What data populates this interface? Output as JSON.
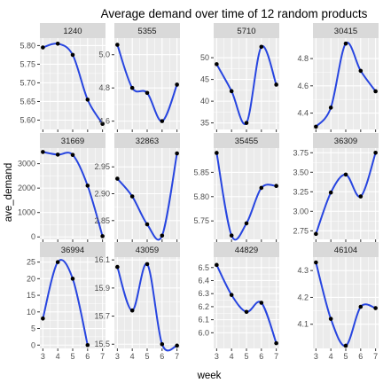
{
  "chart_data": {
    "type": "line",
    "title": "Average demand over time of 12 random products",
    "xlabel": "week",
    "ylabel": "ave_demand",
    "x_ticks": [
      3,
      4,
      5,
      6,
      7
    ],
    "grid": true,
    "facet_layout": "3 rows x 4 columns, free y scales",
    "colors": {
      "panel_background": "#ebebeb",
      "grid": "#ffffff",
      "strip_background": "#d9d9d9",
      "line": "#2745e0",
      "point": "#000000"
    },
    "panels": [
      {
        "label": "1240",
        "x": [
          3,
          4,
          5,
          6,
          7
        ],
        "y": [
          5.795,
          5.805,
          5.775,
          5.655,
          5.59
        ],
        "ylim": [
          5.575,
          5.82
        ],
        "ticks": [
          5.6,
          5.65,
          5.7,
          5.75,
          5.8
        ],
        "tick_labels": [
          "5.60",
          "5.65",
          "5.70",
          "5.75",
          "5.80"
        ]
      },
      {
        "label": "5355",
        "x": [
          3,
          4,
          5,
          6,
          7
        ],
        "y": [
          5.06,
          4.8,
          4.77,
          4.6,
          4.82
        ],
        "ylim": [
          4.55,
          5.1
        ],
        "ticks": [
          4.6,
          4.8,
          5.0
        ],
        "tick_labels": [
          "4.6",
          "4.8",
          "5.0"
        ]
      },
      {
        "label": "5710",
        "x": [
          3,
          4,
          5,
          6,
          7
        ],
        "y": [
          48.5,
          42.3,
          35.0,
          52.5,
          43.8
        ],
        "ylim": [
          33.5,
          54.5
        ],
        "ticks": [
          35,
          40,
          45,
          50
        ],
        "tick_labels": [
          "35",
          "40",
          "45",
          "50"
        ]
      },
      {
        "label": "30415",
        "x": [
          3,
          4,
          5,
          6,
          7
        ],
        "y": [
          4.3,
          4.44,
          4.91,
          4.71,
          4.56
        ],
        "ylim": [
          4.28,
          4.95
        ],
        "ticks": [
          4.4,
          4.6,
          4.8
        ],
        "tick_labels": [
          "4.4",
          "4.6",
          "4.8"
        ]
      },
      {
        "label": "31669",
        "x": [
          3,
          4,
          5,
          6,
          7
        ],
        "y": [
          3480,
          3370,
          3360,
          2100,
          30
        ],
        "ylim": [
          -100,
          3640
        ],
        "ticks": [
          0,
          1000,
          2000,
          3000
        ],
        "tick_labels": [
          "0",
          "1000",
          "2000",
          "3000"
        ]
      },
      {
        "label": "32863",
        "x": [
          3,
          4,
          5,
          6,
          7
        ],
        "y": [
          2.928,
          2.895,
          2.843,
          2.822,
          2.975
        ],
        "ylim": [
          2.815,
          2.985
        ],
        "ticks": [
          2.85,
          2.9,
          2.95
        ],
        "tick_labels": [
          "2.85",
          "2.90",
          "2.95"
        ]
      },
      {
        "label": "35455",
        "x": [
          3,
          4,
          5,
          6,
          7
        ],
        "y": [
          5.89,
          5.72,
          5.745,
          5.818,
          5.822
        ],
        "ylim": [
          5.712,
          5.9
        ],
        "ticks": [
          5.75,
          5.8,
          5.85
        ],
        "tick_labels": [
          "5.75",
          "5.80",
          "5.85"
        ]
      },
      {
        "label": "36309",
        "x": [
          3,
          4,
          5,
          6,
          7
        ],
        "y": [
          2.71,
          3.24,
          3.47,
          3.19,
          3.75
        ],
        "ylim": [
          2.64,
          3.81
        ],
        "ticks": [
          2.75,
          3.0,
          3.25,
          3.5,
          3.75
        ],
        "tick_labels": [
          "2.75",
          "3.00",
          "3.25",
          "3.50",
          "3.75"
        ]
      },
      {
        "label": "36994",
        "x": [
          3,
          4,
          5,
          6,
          7
        ],
        "y": [
          8,
          25,
          20,
          0,
          null
        ],
        "ylim": [
          -1,
          26.5
        ],
        "ticks": [
          0,
          5,
          10,
          15,
          20,
          25
        ],
        "tick_labels": [
          "0",
          "5",
          "10",
          "15",
          "20",
          "25"
        ]
      },
      {
        "label": "43059",
        "x": [
          3,
          4,
          5,
          6,
          7
        ],
        "y": [
          16.05,
          15.74,
          16.07,
          15.5,
          15.49
        ],
        "ylim": [
          15.47,
          16.12
        ],
        "ticks": [
          15.5,
          15.7,
          15.9,
          16.1
        ],
        "tick_labels": [
          "15.5",
          "15.7",
          "15.9",
          "16.1"
        ]
      },
      {
        "label": "44829",
        "x": [
          3,
          4,
          5,
          6,
          7
        ],
        "y": [
          6.52,
          6.29,
          6.16,
          6.23,
          5.92
        ],
        "ylim": [
          5.88,
          6.58
        ],
        "ticks": [
          6.0,
          6.1,
          6.2,
          6.3,
          6.4,
          6.5
        ],
        "tick_labels": [
          "6.0",
          "6.1",
          "6.2",
          "6.3",
          "6.4",
          "6.5"
        ]
      },
      {
        "label": "46104",
        "x": [
          3,
          4,
          5,
          6,
          7
        ],
        "y": [
          4.33,
          4.12,
          4.02,
          4.165,
          4.16
        ],
        "ylim": [
          4.01,
          4.35
        ],
        "ticks": [
          4.1,
          4.2,
          4.3
        ],
        "tick_labels": [
          "4.1",
          "4.2",
          "4.3"
        ]
      }
    ]
  }
}
